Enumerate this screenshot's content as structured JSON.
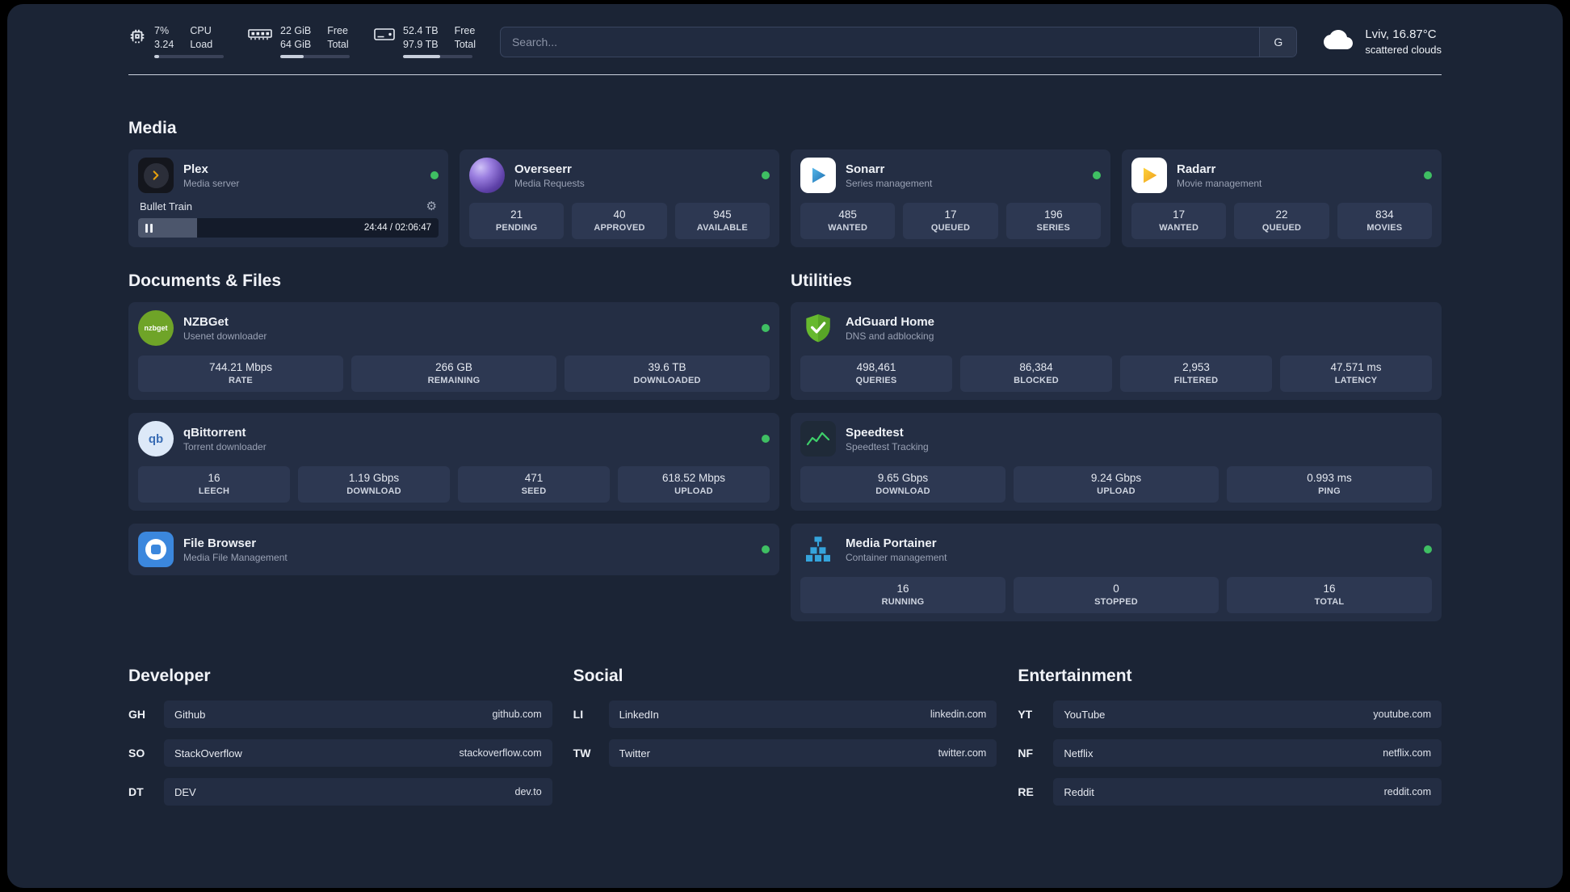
{
  "header": {
    "cpu": {
      "value_top": "7%",
      "value_bottom": "3.24",
      "label_top": "CPU",
      "label_bottom": "Load",
      "percent": 7
    },
    "ram": {
      "value_top": "22 GiB",
      "value_bottom": "64 GiB",
      "label_top": "Free",
      "label_bottom": "Total",
      "percent": 34
    },
    "disk": {
      "value_top": "52.4 TB",
      "value_bottom": "97.9 TB",
      "label_top": "Free",
      "label_bottom": "Total",
      "percent": 53
    },
    "search": {
      "placeholder": "Search...",
      "button_label": "G"
    },
    "weather": {
      "location": "Lviv, 16.87°C",
      "condition": "scattered clouds"
    }
  },
  "media": {
    "title": "Media",
    "plex": {
      "name": "Plex",
      "desc": "Media server",
      "now_playing": "Bullet Train",
      "time": "24:44 / 02:06:47",
      "progress_percent": 19.5
    },
    "overseerr": {
      "name": "Overseerr",
      "desc": "Media Requests",
      "stats": [
        {
          "value": "21",
          "label": "PENDING"
        },
        {
          "value": "40",
          "label": "APPROVED"
        },
        {
          "value": "945",
          "label": "AVAILABLE"
        }
      ]
    },
    "sonarr": {
      "name": "Sonarr",
      "desc": "Series management",
      "stats": [
        {
          "value": "485",
          "label": "WANTED"
        },
        {
          "value": "17",
          "label": "QUEUED"
        },
        {
          "value": "196",
          "label": "SERIES"
        }
      ]
    },
    "radarr": {
      "name": "Radarr",
      "desc": "Movie management",
      "stats": [
        {
          "value": "17",
          "label": "WANTED"
        },
        {
          "value": "22",
          "label": "QUEUED"
        },
        {
          "value": "834",
          "label": "MOVIES"
        }
      ]
    }
  },
  "documents": {
    "title": "Documents & Files",
    "nzbget": {
      "name": "NZBGet",
      "desc": "Usenet downloader",
      "icon_text": "nzbget",
      "stats": [
        {
          "value": "744.21 Mbps",
          "label": "RATE"
        },
        {
          "value": "266 GB",
          "label": "REMAINING"
        },
        {
          "value": "39.6 TB",
          "label": "DOWNLOADED"
        }
      ]
    },
    "qbittorrent": {
      "name": "qBittorrent",
      "desc": "Torrent downloader",
      "icon_text": "qb",
      "stats": [
        {
          "value": "16",
          "label": "LEECH"
        },
        {
          "value": "1.19 Gbps",
          "label": "DOWNLOAD"
        },
        {
          "value": "471",
          "label": "SEED"
        },
        {
          "value": "618.52 Mbps",
          "label": "UPLOAD"
        }
      ]
    },
    "filebrowser": {
      "name": "File Browser",
      "desc": "Media File Management"
    }
  },
  "utilities": {
    "title": "Utilities",
    "adguard": {
      "name": "AdGuard Home",
      "desc": "DNS and adblocking",
      "stats": [
        {
          "value": "498,461",
          "label": "QUERIES"
        },
        {
          "value": "86,384",
          "label": "BLOCKED"
        },
        {
          "value": "2,953",
          "label": "FILTERED"
        },
        {
          "value": "47.571 ms",
          "label": "LATENCY"
        }
      ]
    },
    "speedtest": {
      "name": "Speedtest",
      "desc": "Speedtest Tracking",
      "stats": [
        {
          "value": "9.65 Gbps",
          "label": "DOWNLOAD"
        },
        {
          "value": "9.24 Gbps",
          "label": "UPLOAD"
        },
        {
          "value": "0.993 ms",
          "label": "PING"
        }
      ]
    },
    "portainer": {
      "name": "Media Portainer",
      "desc": "Container management",
      "stats": [
        {
          "value": "16",
          "label": "RUNNING"
        },
        {
          "value": "0",
          "label": "STOPPED"
        },
        {
          "value": "16",
          "label": "TOTAL"
        }
      ]
    }
  },
  "bookmarks": {
    "developer": {
      "title": "Developer",
      "items": [
        {
          "abbr": "GH",
          "name": "Github",
          "url": "github.com"
        },
        {
          "abbr": "SO",
          "name": "StackOverflow",
          "url": "stackoverflow.com"
        },
        {
          "abbr": "DT",
          "name": "DEV",
          "url": "dev.to"
        }
      ]
    },
    "social": {
      "title": "Social",
      "items": [
        {
          "abbr": "LI",
          "name": "LinkedIn",
          "url": "linkedin.com"
        },
        {
          "abbr": "TW",
          "name": "Twitter",
          "url": "twitter.com"
        }
      ]
    },
    "entertainment": {
      "title": "Entertainment",
      "items": [
        {
          "abbr": "YT",
          "name": "YouTube",
          "url": "youtube.com"
        },
        {
          "abbr": "NF",
          "name": "Netflix",
          "url": "netflix.com"
        },
        {
          "abbr": "RE",
          "name": "Reddit",
          "url": "reddit.com"
        }
      ]
    }
  },
  "colors": {
    "status_online": "#3fbf63",
    "plex_accent": "#e5a00d"
  }
}
